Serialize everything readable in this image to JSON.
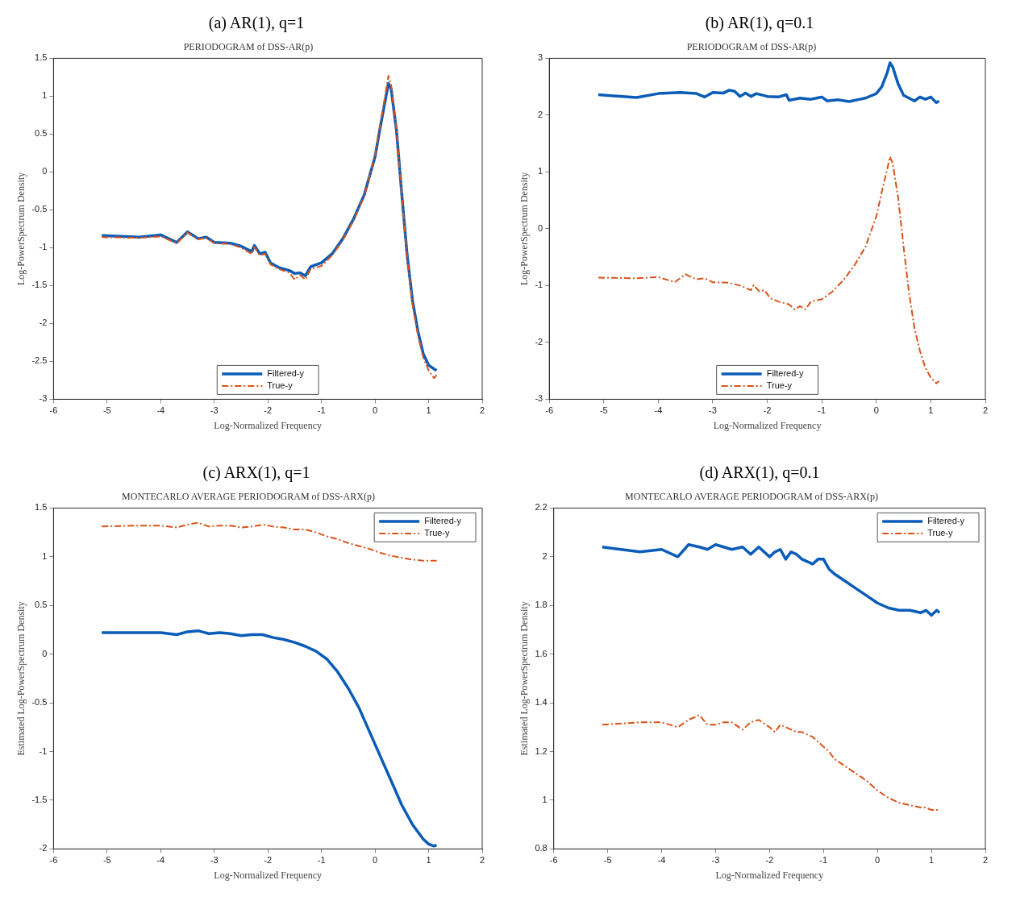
{
  "chart_data": [
    {
      "type": "line",
      "title": "(a) AR(1), q=1",
      "subtitle": "PERIODOGRAM of DSS-AR(p)",
      "xlabel": "Log-Normalized Frequency",
      "ylabel": "Log-PowerSpectrum Density",
      "xlim": [
        -6,
        2
      ],
      "xticks": [
        -6,
        -5,
        -4,
        -3,
        -2,
        -1,
        0,
        1,
        2
      ],
      "ylim": [
        -3,
        1.5
      ],
      "yticks": [
        -3,
        -2.5,
        -2,
        -1.5,
        -1,
        -0.5,
        0,
        0.5,
        1,
        1.5
      ],
      "grid": false,
      "legend": "bottom",
      "series": [
        {
          "name": "Filtered-y",
          "color": "#0a5cb8",
          "line_style": "solid",
          "x": [
            -5.1,
            -4.4,
            -4.0,
            -3.7,
            -3.5,
            -3.3,
            -3.15,
            -3.0,
            -2.7,
            -2.5,
            -2.3,
            -2.25,
            -2.15,
            -2.05,
            -1.95,
            -1.8,
            -1.6,
            -1.5,
            -1.4,
            -1.3,
            -1.2,
            -1.0,
            -0.8,
            -0.6,
            -0.4,
            -0.2,
            0.0,
            0.1,
            0.2,
            0.25,
            0.3,
            0.4,
            0.5,
            0.6,
            0.7,
            0.8,
            0.9,
            1.0,
            1.1,
            1.15
          ],
          "values": [
            -0.84,
            -0.86,
            -0.83,
            -0.93,
            -0.79,
            -0.88,
            -0.86,
            -0.93,
            -0.94,
            -0.98,
            -1.05,
            -0.97,
            -1.08,
            -1.06,
            -1.2,
            -1.26,
            -1.3,
            -1.34,
            -1.33,
            -1.37,
            -1.25,
            -1.2,
            -1.08,
            -0.88,
            -0.62,
            -0.3,
            0.2,
            0.6,
            0.98,
            1.17,
            1.1,
            0.55,
            -0.3,
            -1.1,
            -1.7,
            -2.1,
            -2.4,
            -2.55,
            -2.6,
            -2.62
          ]
        },
        {
          "name": "True-y",
          "color": "#d95319",
          "line_style": "dashed",
          "x": [
            -5.1,
            -4.4,
            -4.0,
            -3.7,
            -3.5,
            -3.3,
            -3.15,
            -3.0,
            -2.7,
            -2.5,
            -2.3,
            -2.25,
            -2.15,
            -2.05,
            -1.95,
            -1.8,
            -1.6,
            -1.5,
            -1.4,
            -1.3,
            -1.2,
            -1.0,
            -0.8,
            -0.6,
            -0.4,
            -0.2,
            0.0,
            0.1,
            0.2,
            0.25,
            0.3,
            0.4,
            0.5,
            0.6,
            0.7,
            0.8,
            0.9,
            1.0,
            1.1,
            1.15
          ],
          "values": [
            -0.86,
            -0.87,
            -0.85,
            -0.94,
            -0.8,
            -0.89,
            -0.87,
            -0.94,
            -0.95,
            -1.0,
            -1.08,
            -0.99,
            -1.1,
            -1.08,
            -1.22,
            -1.28,
            -1.33,
            -1.42,
            -1.36,
            -1.42,
            -1.28,
            -1.24,
            -1.1,
            -0.9,
            -0.64,
            -0.32,
            0.22,
            0.65,
            1.05,
            1.27,
            1.15,
            0.55,
            -0.32,
            -1.13,
            -1.75,
            -2.15,
            -2.45,
            -2.62,
            -2.72,
            -2.68
          ]
        }
      ]
    },
    {
      "type": "line",
      "title": "(b) AR(1), q=0.1",
      "subtitle": "PERIODOGRAM of DSS-AR(p)",
      "xlabel": "Log-Normalized Frequency",
      "ylabel": "Log-PowerSpectrum Density",
      "xlim": [
        -6,
        2
      ],
      "xticks": [
        -6,
        -5,
        -4,
        -3,
        -2,
        -1,
        0,
        1,
        2
      ],
      "ylim": [
        -3,
        3
      ],
      "yticks": [
        -3,
        -2,
        -1,
        0,
        1,
        2,
        3
      ],
      "grid": false,
      "legend": "bottom",
      "series": [
        {
          "name": "Filtered-y",
          "color": "#0a5cb8",
          "line_style": "solid",
          "x": [
            -5.1,
            -4.4,
            -4.0,
            -3.6,
            -3.3,
            -3.15,
            -3.0,
            -2.8,
            -2.7,
            -2.6,
            -2.5,
            -2.4,
            -2.3,
            -2.2,
            -2.0,
            -1.8,
            -1.65,
            -1.6,
            -1.4,
            -1.2,
            -1.0,
            -0.9,
            -0.7,
            -0.5,
            -0.3,
            -0.2,
            0.0,
            0.1,
            0.2,
            0.25,
            0.3,
            0.4,
            0.5,
            0.6,
            0.7,
            0.8,
            0.9,
            1.0,
            1.1,
            1.15
          ],
          "values": [
            2.36,
            2.31,
            2.38,
            2.4,
            2.38,
            2.32,
            2.4,
            2.39,
            2.44,
            2.42,
            2.33,
            2.39,
            2.33,
            2.38,
            2.33,
            2.32,
            2.36,
            2.26,
            2.3,
            2.28,
            2.32,
            2.25,
            2.27,
            2.24,
            2.28,
            2.3,
            2.38,
            2.5,
            2.75,
            2.92,
            2.85,
            2.55,
            2.35,
            2.3,
            2.25,
            2.32,
            2.28,
            2.32,
            2.22,
            2.25
          ]
        },
        {
          "name": "True-y",
          "color": "#d95319",
          "line_style": "dashed",
          "x": [
            -5.1,
            -4.4,
            -4.0,
            -3.7,
            -3.5,
            -3.3,
            -3.15,
            -3.0,
            -2.7,
            -2.5,
            -2.3,
            -2.25,
            -2.15,
            -2.05,
            -1.95,
            -1.8,
            -1.6,
            -1.5,
            -1.4,
            -1.3,
            -1.2,
            -1.0,
            -0.8,
            -0.6,
            -0.4,
            -0.2,
            0.0,
            0.1,
            0.2,
            0.25,
            0.3,
            0.4,
            0.5,
            0.6,
            0.7,
            0.8,
            0.9,
            1.0,
            1.1,
            1.15
          ],
          "values": [
            -0.86,
            -0.87,
            -0.85,
            -0.94,
            -0.8,
            -0.89,
            -0.87,
            -0.94,
            -0.95,
            -1.0,
            -1.08,
            -0.99,
            -1.1,
            -1.08,
            -1.22,
            -1.28,
            -1.33,
            -1.42,
            -1.36,
            -1.42,
            -1.28,
            -1.24,
            -1.1,
            -0.9,
            -0.64,
            -0.32,
            0.22,
            0.65,
            1.05,
            1.27,
            1.15,
            0.55,
            -0.32,
            -1.13,
            -1.75,
            -2.15,
            -2.45,
            -2.62,
            -2.72,
            -2.68
          ]
        }
      ]
    },
    {
      "type": "line",
      "title": "(c) ARX(1), q=1",
      "subtitle": "MONTECARLO AVERAGE PERIODOGRAM of DSS-ARX(p)",
      "xlabel": "Log-Normalized Frequency",
      "ylabel": "Estimated Log-PowerSpectrum Density",
      "xlim": [
        -6,
        2
      ],
      "xticks": [
        -6,
        -5,
        -4,
        -3,
        -2,
        -1,
        0,
        1,
        2
      ],
      "ylim": [
        -2,
        1.5
      ],
      "yticks": [
        -2,
        -1.5,
        -1,
        -0.5,
        0,
        0.5,
        1,
        1.5
      ],
      "grid": false,
      "legend": "top right",
      "series": [
        {
          "name": "Filtered-y",
          "color": "#0a5cb8",
          "line_style": "solid",
          "x": [
            -5.1,
            -4.5,
            -4.0,
            -3.7,
            -3.5,
            -3.3,
            -3.1,
            -2.9,
            -2.7,
            -2.5,
            -2.3,
            -2.1,
            -1.9,
            -1.7,
            -1.5,
            -1.3,
            -1.1,
            -0.9,
            -0.7,
            -0.5,
            -0.3,
            -0.1,
            0.1,
            0.3,
            0.5,
            0.7,
            0.9,
            1.0,
            1.1,
            1.15
          ],
          "values": [
            0.22,
            0.22,
            0.22,
            0.2,
            0.23,
            0.24,
            0.21,
            0.22,
            0.21,
            0.19,
            0.2,
            0.2,
            0.17,
            0.15,
            0.12,
            0.08,
            0.03,
            -0.05,
            -0.18,
            -0.35,
            -0.55,
            -0.8,
            -1.05,
            -1.3,
            -1.55,
            -1.75,
            -1.9,
            -1.95,
            -1.97,
            -1.96
          ]
        },
        {
          "name": "True-y",
          "color": "#d95319",
          "line_style": "dashed",
          "x": [
            -5.1,
            -4.5,
            -4.0,
            -3.7,
            -3.5,
            -3.3,
            -3.1,
            -2.9,
            -2.7,
            -2.5,
            -2.3,
            -2.1,
            -1.9,
            -1.7,
            -1.5,
            -1.3,
            -1.1,
            -0.9,
            -0.7,
            -0.5,
            -0.3,
            -0.1,
            0.1,
            0.3,
            0.5,
            0.7,
            0.9,
            1.0,
            1.1,
            1.15
          ],
          "values": [
            1.31,
            1.32,
            1.32,
            1.3,
            1.33,
            1.35,
            1.31,
            1.32,
            1.32,
            1.3,
            1.31,
            1.33,
            1.31,
            1.3,
            1.28,
            1.28,
            1.25,
            1.21,
            1.18,
            1.14,
            1.11,
            1.08,
            1.04,
            1.01,
            0.99,
            0.97,
            0.96,
            0.96,
            0.96,
            0.96
          ]
        }
      ]
    },
    {
      "type": "line",
      "title": "(d) ARX(1), q=0.1",
      "subtitle": "MONTECARLO AVERAGE PERIODOGRAM of DSS-ARX(p)",
      "xlabel": "Log-Normalized Frequency",
      "ylabel": "Estimated Log-PowerSpectrum Density",
      "xlim": [
        -6,
        2
      ],
      "xticks": [
        -6,
        -5,
        -4,
        -3,
        -2,
        -1,
        0,
        1,
        2
      ],
      "ylim": [
        0.8,
        2.2
      ],
      "yticks": [
        0.8,
        1,
        1.2,
        1.4,
        1.6,
        1.8,
        2,
        2.2
      ],
      "grid": false,
      "legend": "top right",
      "series": [
        {
          "name": "Filtered-y",
          "color": "#0a5cb8",
          "line_style": "solid",
          "x": [
            -5.1,
            -4.4,
            -4.0,
            -3.7,
            -3.5,
            -3.3,
            -3.15,
            -3.0,
            -2.85,
            -2.7,
            -2.5,
            -2.35,
            -2.2,
            -2.0,
            -1.9,
            -1.8,
            -1.7,
            -1.6,
            -1.5,
            -1.4,
            -1.3,
            -1.2,
            -1.1,
            -1.0,
            -0.9,
            -0.8,
            -0.6,
            -0.4,
            -0.2,
            0.0,
            0.2,
            0.4,
            0.6,
            0.8,
            0.9,
            1.0,
            1.1,
            1.15
          ],
          "values": [
            2.04,
            2.02,
            2.03,
            2.0,
            2.05,
            2.04,
            2.03,
            2.05,
            2.04,
            2.03,
            2.04,
            2.01,
            2.04,
            2.0,
            2.02,
            2.03,
            1.99,
            2.02,
            2.01,
            1.99,
            1.98,
            1.97,
            1.99,
            1.99,
            1.95,
            1.93,
            1.9,
            1.87,
            1.84,
            1.81,
            1.79,
            1.78,
            1.78,
            1.77,
            1.78,
            1.76,
            1.78,
            1.77
          ]
        },
        {
          "name": "True-y",
          "color": "#d95319",
          "line_style": "dashed",
          "x": [
            -5.1,
            -4.4,
            -4.0,
            -3.7,
            -3.5,
            -3.3,
            -3.15,
            -3.0,
            -2.85,
            -2.7,
            -2.5,
            -2.35,
            -2.2,
            -2.0,
            -1.9,
            -1.8,
            -1.7,
            -1.6,
            -1.5,
            -1.4,
            -1.3,
            -1.2,
            -1.1,
            -1.0,
            -0.9,
            -0.8,
            -0.6,
            -0.4,
            -0.2,
            0.0,
            0.2,
            0.4,
            0.6,
            0.8,
            0.9,
            1.0,
            1.1,
            1.15
          ],
          "values": [
            1.31,
            1.32,
            1.32,
            1.3,
            1.33,
            1.35,
            1.31,
            1.31,
            1.32,
            1.32,
            1.29,
            1.32,
            1.33,
            1.3,
            1.28,
            1.31,
            1.3,
            1.29,
            1.28,
            1.28,
            1.27,
            1.26,
            1.24,
            1.22,
            1.2,
            1.17,
            1.14,
            1.11,
            1.08,
            1.04,
            1.01,
            0.99,
            0.98,
            0.97,
            0.97,
            0.96,
            0.96,
            0.96
          ]
        }
      ]
    }
  ]
}
